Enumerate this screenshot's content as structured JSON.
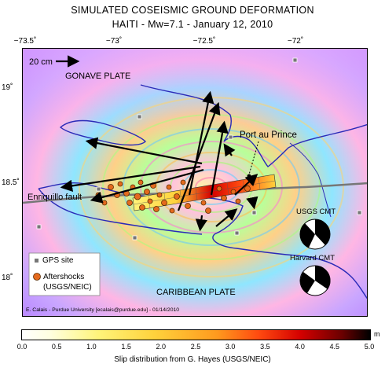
{
  "title": {
    "line1": "SIMULATED COSEISMIC GROUND DEFORMATION",
    "line2": "HAITI - Mw=7.1 - January 12, 2010"
  },
  "axes": {
    "lon_labels": [
      "−73.5˚",
      "−73˚",
      "−72.5˚",
      "−72˚"
    ],
    "lat_labels": [
      "19˚",
      "18.5˚",
      "18˚"
    ]
  },
  "map": {
    "scale_label": "20 cm",
    "plates": {
      "gonave": "GONAVE PLATE",
      "caribbean": "CARIBBEAN PLATE"
    },
    "city": "Port au Prince",
    "fault": "Enriquillo fault",
    "cmt": {
      "usgs": "USGS CMT",
      "harvard": "Harvard CMT"
    },
    "legend": {
      "gps": "GPS site",
      "aftershocks_1": "Aftershocks",
      "aftershocks_2": "(USGS/NEIC)"
    },
    "credit": "E. Calais - Purdue University [ecalais@purdue.edu] - 01/14/2010"
  },
  "colorbar": {
    "ticks": [
      "0.0",
      "0.5",
      "1.0",
      "1.5",
      "2.0",
      "2.5",
      "3.0",
      "3.5",
      "4.0",
      "4.5",
      "5.0"
    ],
    "unit": "m",
    "title": "Slip distribution from G. Hayes (USGS/NEIC)"
  }
}
